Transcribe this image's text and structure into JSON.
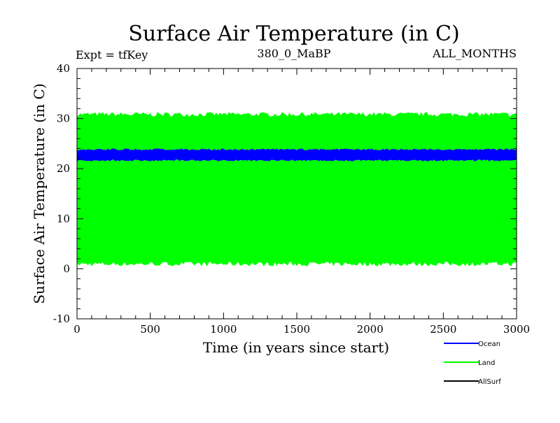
{
  "chart_data": {
    "type": "area",
    "title": "Surface Air Temperature (in C)",
    "annotations": {
      "left": "Expt = tfKey",
      "center": "380_0_MaBP",
      "right": "ALL_MONTHS"
    },
    "xlabel": "Time (in years since start)",
    "ylabel": "Surface Air Temperature (in C)",
    "xlim": [
      0,
      3000
    ],
    "ylim": [
      -10,
      40
    ],
    "x_ticks": [
      0,
      500,
      1000,
      1500,
      2000,
      2500,
      3000
    ],
    "y_ticks": [
      -10,
      0,
      10,
      20,
      30,
      40
    ],
    "grid": false,
    "legend_position": "bottom-right",
    "series": [
      {
        "name": "Ocean",
        "color": "#0000ff",
        "x": [
          0,
          3000
        ],
        "low": [
          21.7,
          21.7
        ],
        "high": [
          23.8,
          23.8
        ]
      },
      {
        "name": "Land",
        "color": "#00ff00",
        "x": [
          0,
          3000
        ],
        "low": [
          1.0,
          1.0
        ],
        "high": [
          30.8,
          30.8
        ]
      },
      {
        "name": "AllSurf",
        "color": "#000000",
        "x": [],
        "low": [],
        "high": []
      }
    ],
    "draw_order": [
      "Land",
      "Ocean"
    ]
  }
}
